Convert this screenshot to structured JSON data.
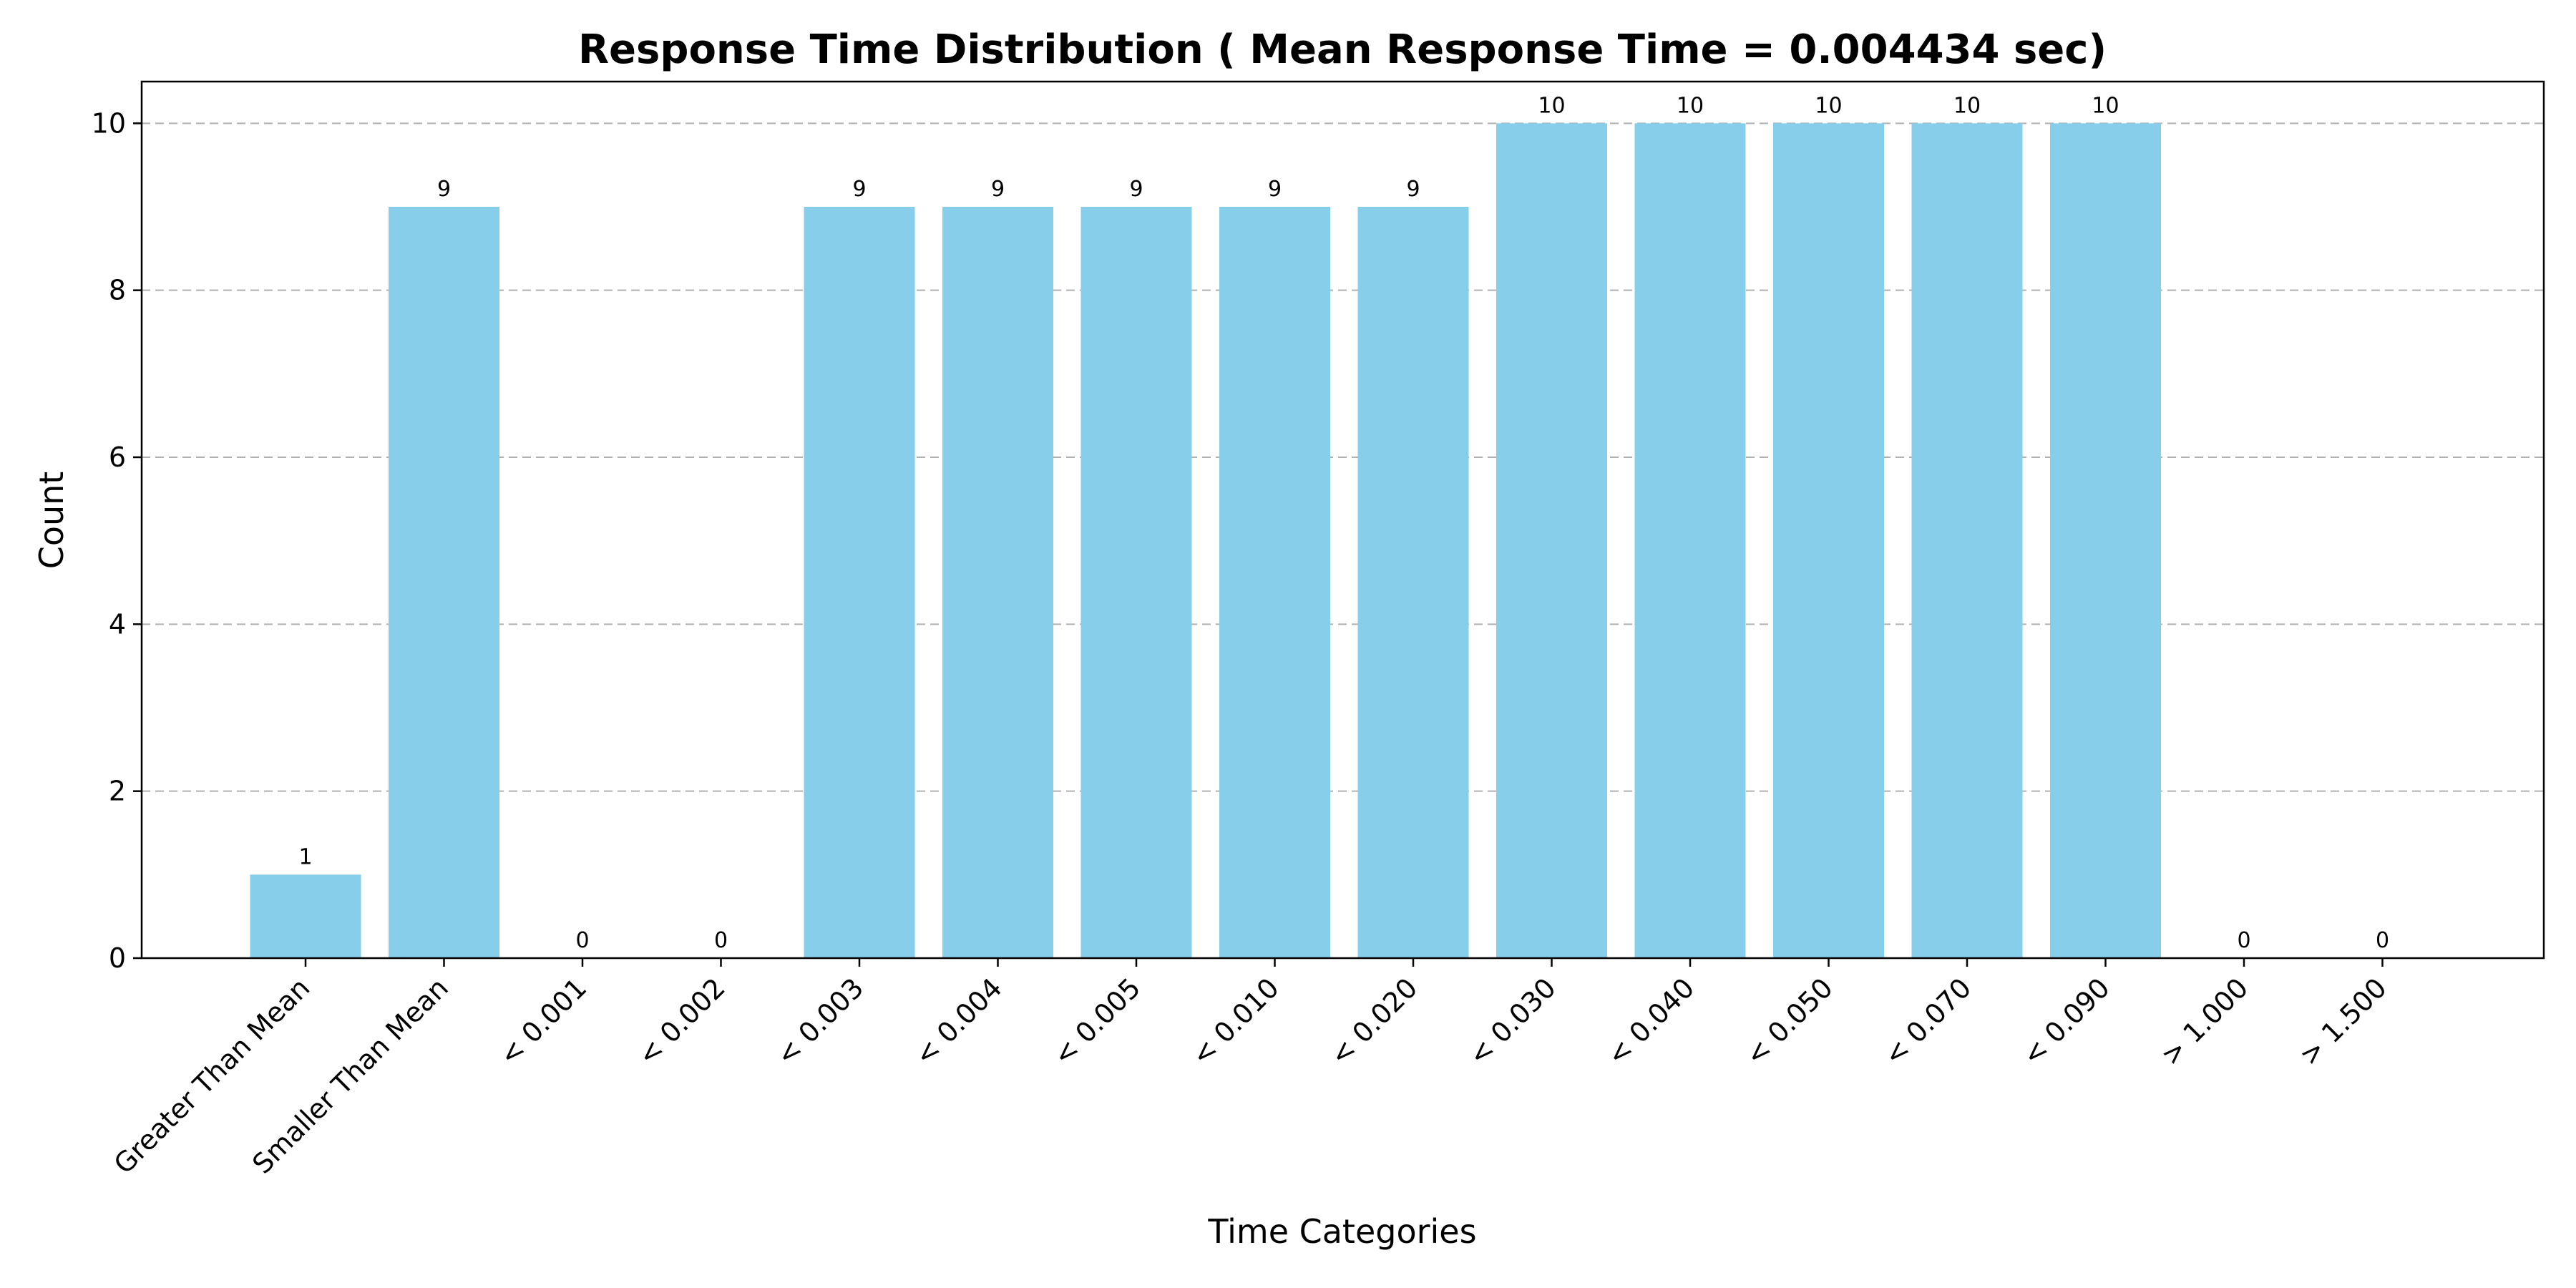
{
  "chart_data": {
    "type": "bar",
    "title": "Response Time Distribution ( Mean Response Time = 0.004434 sec)",
    "xlabel": "Time Categories",
    "ylabel": "Count",
    "categories": [
      "Greater Than Mean",
      "Smaller Than Mean",
      "< 0.001",
      "< 0.002",
      "< 0.003",
      "< 0.004",
      "< 0.005",
      "< 0.010",
      "< 0.020",
      "< 0.030",
      "< 0.040",
      "< 0.050",
      "< 0.070",
      "< 0.090",
      "> 1.000",
      "> 1.500"
    ],
    "values": [
      1,
      9,
      0,
      0,
      9,
      9,
      9,
      9,
      9,
      10,
      10,
      10,
      10,
      10,
      0,
      0
    ],
    "ylim": [
      0,
      10.5
    ],
    "yticks": [
      0,
      2,
      4,
      6,
      8,
      10
    ],
    "grid": "horizontal dashed",
    "bar_color": "#87ceeb",
    "data_labels": true
  }
}
